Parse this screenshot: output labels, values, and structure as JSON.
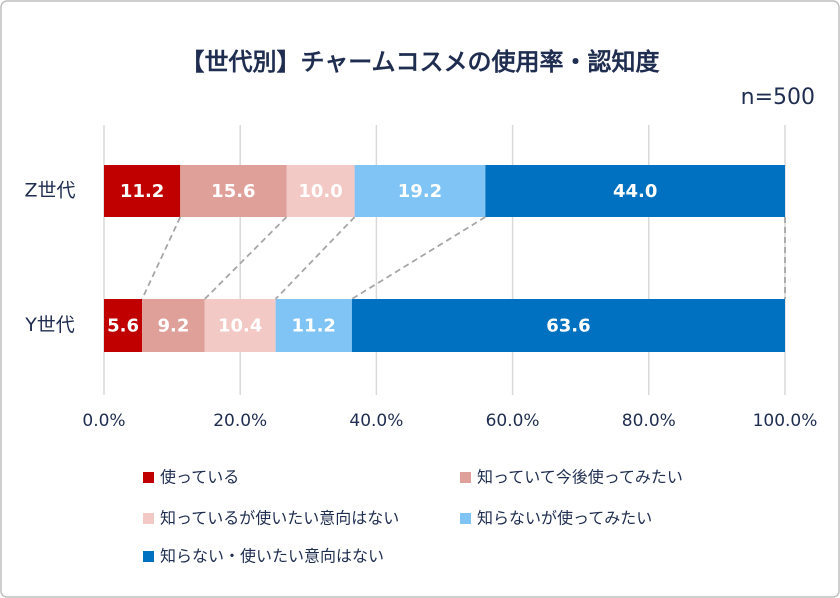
{
  "chart_data": {
    "type": "stacked_barh",
    "title": "【世代別】チャームコスメの使用率・認知度",
    "subtitle": "n=500",
    "categories": [
      "Z世代",
      "Y世代"
    ],
    "series": [
      {
        "name": "使っている",
        "color": "#c00000",
        "values": [
          11.2,
          5.6
        ],
        "value_labels": [
          "11.2",
          "5.6"
        ]
      },
      {
        "name": "知っていて今後使ってみたい",
        "color": "#e0a09a",
        "values": [
          15.6,
          9.2
        ],
        "value_labels": [
          "15.6",
          "9.2"
        ]
      },
      {
        "name": "知っているが使いたい意向はない",
        "color": "#f2c9c4",
        "values": [
          10.0,
          10.4
        ],
        "value_labels": [
          "10.0",
          "10.4"
        ]
      },
      {
        "name": "知らないが使ってみたい",
        "color": "#7fc4f5",
        "values": [
          19.2,
          11.2
        ],
        "value_labels": [
          "19.2",
          "11.2"
        ]
      },
      {
        "name": "知らない・使いたい意向はない",
        "color": "#0070c0",
        "values": [
          44.0,
          63.6
        ],
        "value_labels": [
          "44.0",
          "63.6"
        ]
      }
    ],
    "xlim": [
      0,
      100
    ],
    "xticks": [
      {
        "value": 0,
        "label": "0.0%"
      },
      {
        "value": 20,
        "label": "20.0%"
      },
      {
        "value": 40,
        "label": "40.0%"
      },
      {
        "value": 60,
        "label": "60.0%"
      },
      {
        "value": 80,
        "label": "80.0%"
      },
      {
        "value": 100,
        "label": "100.0%"
      }
    ],
    "grid": true
  }
}
